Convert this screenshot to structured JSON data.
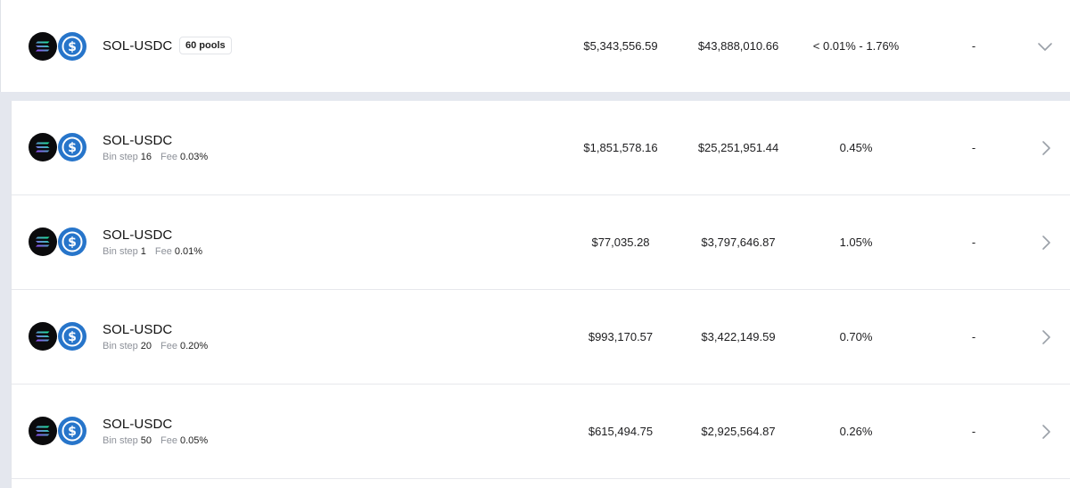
{
  "group": {
    "pair": "SOL-USDC",
    "pools_badge": "60 pools",
    "liquidity": "$5,343,556.59",
    "volume": "$43,888,010.66",
    "fee_range": "< 0.01% - 1.76%",
    "extra": "-"
  },
  "pools": [
    {
      "pair": "SOL-USDC",
      "bin_step_label": "Bin step",
      "bin_step": "16",
      "fee_label": "Fee",
      "fee": "0.03%",
      "liquidity": "$1,851,578.16",
      "volume": "$25,251,951.44",
      "fee_tvl": "0.45%",
      "extra": "-"
    },
    {
      "pair": "SOL-USDC",
      "bin_step_label": "Bin step",
      "bin_step": "1",
      "fee_label": "Fee",
      "fee": "0.01%",
      "liquidity": "$77,035.28",
      "volume": "$3,797,646.87",
      "fee_tvl": "1.05%",
      "extra": "-"
    },
    {
      "pair": "SOL-USDC",
      "bin_step_label": "Bin step",
      "bin_step": "20",
      "fee_label": "Fee",
      "fee": "0.20%",
      "liquidity": "$993,170.57",
      "volume": "$3,422,149.59",
      "fee_tvl": "0.70%",
      "extra": "-"
    },
    {
      "pair": "SOL-USDC",
      "bin_step_label": "Bin step",
      "bin_step": "50",
      "fee_label": "Fee",
      "fee": "0.05%",
      "liquidity": "$615,494.75",
      "volume": "$2,925,564.87",
      "fee_tvl": "0.26%",
      "extra": "-"
    }
  ],
  "icons": {
    "token_a": "solana-icon",
    "token_b": "usdc-icon",
    "expand": "chevron-down-icon",
    "open": "chevron-right-icon"
  },
  "colors": {
    "usdc_blue": "#2775ca",
    "sol_bg": "#0b0b0d",
    "page_bg": "#e4e7ee"
  }
}
